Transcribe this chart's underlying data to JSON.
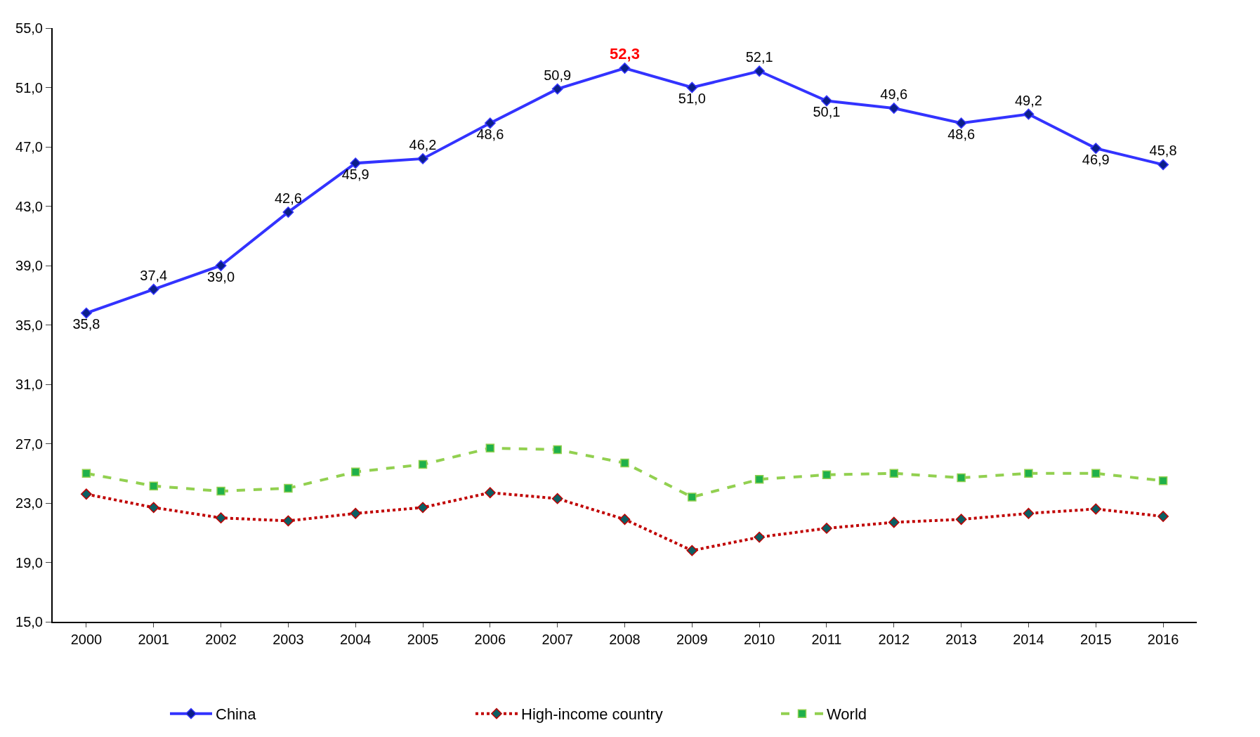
{
  "chart_data": {
    "type": "line",
    "categories": [
      "2000",
      "2001",
      "2002",
      "2003",
      "2004",
      "2005",
      "2006",
      "2007",
      "2008",
      "2009",
      "2010",
      "2011",
      "2012",
      "2013",
      "2014",
      "2015",
      "2016"
    ],
    "series": [
      {
        "name": "China",
        "color": "#3333ff",
        "marker": "diamond",
        "line_style": "solid",
        "values": [
          35.8,
          37.4,
          39.0,
          42.6,
          45.9,
          46.2,
          48.6,
          50.9,
          52.3,
          51.0,
          52.1,
          50.1,
          49.6,
          48.6,
          49.2,
          46.9,
          45.8
        ],
        "value_labels": [
          "35,8",
          "37,4",
          "39,0",
          "42,6",
          "45,9",
          "46,2",
          "48,6",
          "50,9",
          "52,3",
          "51,0",
          "52,1",
          "50,1",
          "49,6",
          "48,6",
          "49,2",
          "46,9",
          "45,8"
        ]
      },
      {
        "name": "High-income country",
        "color": "#c00000",
        "marker": "diamond",
        "line_style": "dotted",
        "values": [
          23.6,
          22.7,
          22.0,
          21.8,
          22.3,
          22.7,
          23.7,
          23.3,
          21.9,
          19.8,
          20.7,
          21.3,
          21.7,
          21.9,
          22.3,
          22.6,
          22.1
        ]
      },
      {
        "name": "World",
        "color": "#92d050",
        "marker": "square",
        "line_style": "dashed",
        "values": [
          25.0,
          24.15,
          23.8,
          24.0,
          25.1,
          25.6,
          26.7,
          26.6,
          25.7,
          23.4,
          24.6,
          24.9,
          25.0,
          24.7,
          25.0,
          25.0,
          24.5
        ]
      }
    ],
    "ylim": [
      15,
      55
    ],
    "yticks": [
      {
        "value": 15,
        "label": "15,0"
      },
      {
        "value": 19,
        "label": "19,0"
      },
      {
        "value": 23,
        "label": "23,0"
      },
      {
        "value": 27,
        "label": "27,0"
      },
      {
        "value": 31,
        "label": "31,0"
      },
      {
        "value": 35,
        "label": "35,0"
      },
      {
        "value": 39,
        "label": "39,0"
      },
      {
        "value": 43,
        "label": "43,0"
      },
      {
        "value": 47,
        "label": "47,0"
      },
      {
        "value": 51,
        "label": "51,0"
      },
      {
        "value": 55,
        "label": "55,0"
      }
    ],
    "legend": "bottom"
  }
}
